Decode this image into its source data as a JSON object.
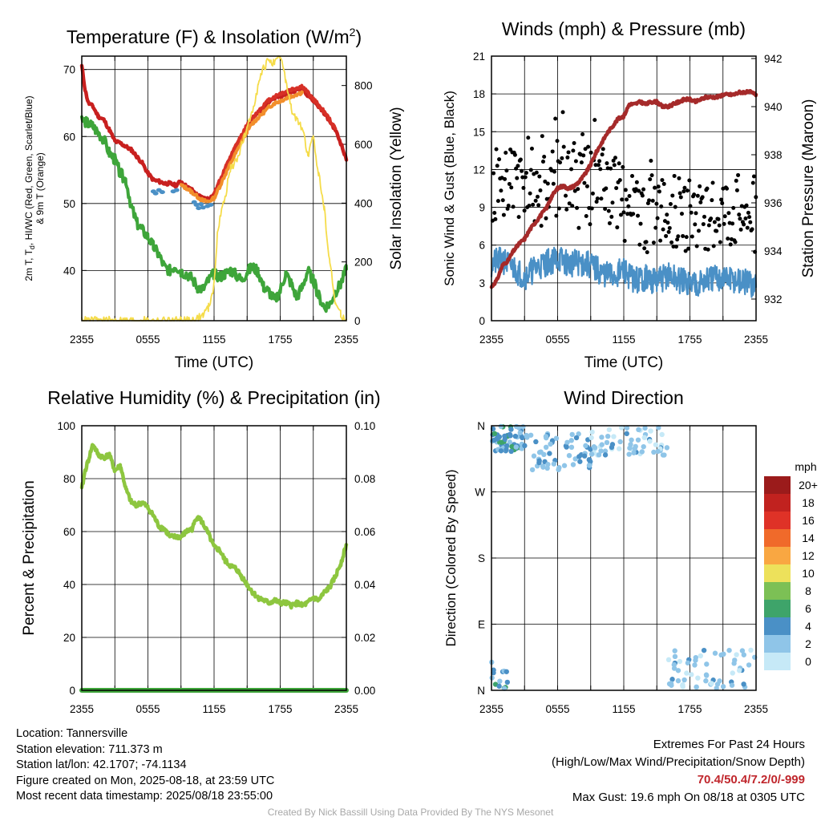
{
  "chart_data": [
    {
      "type": "line",
      "title": "Temperature (F) & Insolation (W/m²)",
      "xlabel": "Time (UTC)",
      "ylabel_left": "2m T, T_d, HI/WC (Red, Green, Scarlet/Blue) & 9m T (Orange)",
      "ylabel_right": "Solar Insolation (Yellow)",
      "xlim": [
        0,
        24
      ],
      "ylim_left": [
        32.5,
        72
      ],
      "ylim_right": [
        0,
        900
      ],
      "x_ticks": [
        "2355",
        "0555",
        "1155",
        "1755",
        "2355"
      ],
      "y_ticks_left": [
        40,
        50,
        60,
        70
      ],
      "y_ticks_right": [
        0,
        200,
        400,
        600,
        800
      ],
      "grid": true,
      "series": [
        {
          "name": "2m T",
          "color": "#c8201f",
          "axis": "left",
          "x": [
            0,
            0.3,
            0.6,
            1,
            1.5,
            2,
            2.5,
            3,
            3.5,
            4,
            4.5,
            5,
            5.5,
            6,
            6.5,
            7,
            7.5,
            8,
            8.5,
            9,
            9.5,
            10,
            10.5,
            11,
            11.5,
            12,
            12.5,
            13,
            13.5,
            14,
            14.5,
            15,
            15.5,
            16,
            16.5,
            17,
            17.5,
            18,
            18.5,
            19,
            19.5,
            20,
            20.5,
            21,
            21.5,
            22,
            22.5,
            23,
            23.5,
            24
          ],
          "y": [
            70.5,
            67,
            65,
            64.5,
            63,
            62.5,
            61,
            59.3,
            59,
            58.5,
            58,
            57,
            56,
            54.5,
            53.5,
            53.3,
            53,
            53,
            52.7,
            53.3,
            52.5,
            52,
            51.2,
            50.8,
            50.7,
            51.3,
            53.3,
            55,
            56.8,
            58.5,
            60,
            61.5,
            62.7,
            63.5,
            64.2,
            65.2,
            65.7,
            66,
            66.3,
            66.7,
            67,
            67.3,
            66.2,
            65.4,
            64.5,
            63.5,
            62.3,
            61,
            59,
            56.5
          ]
        },
        {
          "name": "HI/WC",
          "color": "#d73027",
          "axis": "left",
          "x": [
            12,
            13,
            14,
            15,
            16,
            17,
            18,
            19,
            20,
            21,
            22,
            23
          ],
          "y": [
            51.4,
            55.2,
            58.7,
            61.7,
            63.8,
            65.5,
            66.4,
            67,
            67.5,
            65.6,
            63.7,
            61.2
          ]
        },
        {
          "name": "9m T",
          "color": "#f28e2b",
          "axis": "left",
          "x": [
            9,
            9.5,
            10,
            10.5,
            11,
            11.5,
            12,
            12.5,
            13,
            13.5,
            14,
            14.5,
            15,
            15.5,
            16,
            16.5,
            17,
            17.5,
            18,
            18.5,
            19,
            19.5,
            20
          ],
          "y": [
            52.7,
            52.3,
            51.7,
            51,
            50.4,
            50.3,
            50.8,
            52.5,
            54.3,
            56,
            57.6,
            59.2,
            60.8,
            62,
            62.8,
            63.6,
            64.4,
            65,
            65.3,
            65.7,
            66,
            66.3,
            66.6
          ]
        },
        {
          "name": "T_d",
          "color": "#3ea53a",
          "axis": "left",
          "x": [
            0,
            0.5,
            1,
            1.5,
            2,
            2.5,
            3,
            3.5,
            4,
            4.5,
            5,
            5.5,
            6,
            6.5,
            7,
            7.5,
            8,
            8.5,
            9,
            9.5,
            10,
            10.5,
            11,
            11.5,
            12,
            12.5,
            13,
            13.5,
            14,
            14.5,
            15,
            15.5,
            16,
            16.5,
            17,
            17.5,
            18,
            18.5,
            19,
            19.5,
            20,
            20.5,
            21,
            21.5,
            22,
            22.5,
            23,
            23.5,
            24
          ],
          "y": [
            62.5,
            62,
            61.5,
            60.5,
            59.5,
            57.5,
            56.5,
            54.5,
            53.5,
            49.5,
            47,
            46,
            45,
            43.5,
            42.3,
            40.5,
            40,
            40.7,
            39.8,
            39.5,
            38.8,
            37.5,
            37.2,
            38.5,
            39.5,
            39,
            39.5,
            40,
            39.3,
            38.5,
            39.8,
            40.5,
            39.8,
            37.5,
            36.8,
            35.5,
            37,
            39.6,
            38,
            36,
            37.5,
            40,
            38.5,
            36.2,
            34.5,
            35,
            36.8,
            38,
            40.2
          ]
        },
        {
          "name": "T_d (WC)",
          "color": "#4a90c6",
          "axis": "left",
          "markers": true,
          "x": [
            6.5,
            6.7,
            7,
            7.3,
            8.3,
            8.6,
            10.2,
            10.4,
            10.6,
            10.8,
            11,
            11.4,
            11.7
          ],
          "y": [
            51.8,
            51.5,
            52,
            51.7,
            51.8,
            52,
            50.2,
            49.8,
            49.3,
            49.9,
            49.4,
            49.6,
            49.8
          ]
        },
        {
          "name": "Solar Insolation",
          "color": "#f5dc4a",
          "axis": "right",
          "x": [
            0,
            2,
            4,
            6,
            8,
            9,
            10,
            10.5,
            11,
            11.5,
            12,
            12.3,
            12.6,
            13,
            13.5,
            14,
            14.5,
            15,
            15.5,
            16,
            16.5,
            17,
            17.5,
            18,
            18.5,
            19,
            19.5,
            20,
            20.5,
            21,
            21.5,
            22,
            22.5,
            23,
            23.5,
            24
          ],
          "y": [
            0,
            0,
            0,
            0,
            0,
            0,
            2,
            8,
            20,
            45,
            120,
            300,
            360,
            420,
            520,
            540,
            600,
            650,
            720,
            800,
            860,
            890,
            870,
            900,
            820,
            720,
            680,
            660,
            560,
            620,
            500,
            380,
            200,
            60,
            20,
            5
          ]
        }
      ]
    },
    {
      "type": "line",
      "title": "Winds (mph) & Pressure (mb)",
      "xlabel": "Time (UTC)",
      "ylabel_left": "Sonic Wind & Gust (Blue, Black)",
      "ylabel_right": "Station Pressure (Maroon)",
      "xlim": [
        0,
        24
      ],
      "ylim_left": [
        0,
        21
      ],
      "ylim_right": [
        931.1,
        942.1
      ],
      "x_ticks": [
        "2355",
        "0555",
        "1155",
        "1755",
        "2355"
      ],
      "y_ticks_left": [
        0,
        3,
        6,
        9,
        12,
        15,
        18,
        21
      ],
      "y_ticks_right": [
        932,
        934,
        936,
        938,
        940,
        942
      ],
      "grid": true,
      "series": [
        {
          "name": "Pressure",
          "color": "#a52a2a",
          "axis": "right",
          "x": [
            0,
            0.5,
            1,
            1.5,
            2,
            2.5,
            3,
            3.5,
            4,
            4.5,
            5,
            5.5,
            6,
            6.5,
            7,
            7.5,
            8,
            8.5,
            9,
            9.5,
            10,
            10.5,
            11,
            11.5,
            12,
            12.5,
            13,
            13.5,
            14,
            14.5,
            15,
            15.5,
            16,
            16.5,
            17,
            17.5,
            18,
            18.5,
            19,
            19.5,
            20,
            20.5,
            21,
            21.5,
            22,
            22.5,
            23,
            23.5,
            24
          ],
          "y": [
            932.5,
            932.8,
            933.4,
            933.6,
            934,
            934.3,
            934.5,
            934.9,
            935.2,
            935.5,
            935.8,
            936.3,
            936.6,
            936.7,
            936.6,
            936.7,
            936.9,
            937.2,
            937.6,
            938.1,
            938.5,
            938.9,
            939.2,
            939.5,
            939.6,
            940.1,
            940.1,
            940.2,
            940.1,
            940.2,
            940.2,
            940.0,
            940.0,
            940.1,
            940.2,
            940.3,
            940.3,
            940.2,
            940.3,
            940.4,
            940.4,
            940.4,
            940.5,
            940.5,
            940.5,
            940.6,
            940.6,
            940.6,
            940.5
          ]
        },
        {
          "name": "Sonic Wind",
          "color": "#4a90c6",
          "axis": "left",
          "noisy": true,
          "x": [
            0,
            1,
            2,
            3,
            4,
            5,
            6,
            7,
            8,
            9,
            10,
            11,
            12,
            13,
            14,
            15,
            16,
            17,
            18,
            19,
            20,
            21,
            22,
            23,
            24
          ],
          "y": [
            4.5,
            4.8,
            4.2,
            3.5,
            4.2,
            4.6,
            5,
            4.5,
            4.6,
            4.4,
            3.8,
            3.5,
            4,
            3.2,
            3.4,
            3.1,
            3.6,
            3.2,
            3,
            3.1,
            3.3,
            3.4,
            3.2,
            3,
            2.7
          ]
        },
        {
          "name": "Gust",
          "color": "#000000",
          "axis": "left",
          "markers": true,
          "avg": 10.2,
          "spread": 2.8
        }
      ]
    },
    {
      "type": "line",
      "title": "Relative Humidity (%) & Precipitation (in)",
      "ylabel_left": "Percent & Precipitation",
      "xlim": [
        0,
        24
      ],
      "ylim_left": [
        0,
        100
      ],
      "ylim_right": [
        0,
        0.1
      ],
      "x_ticks": [
        "2355",
        "0555",
        "1155",
        "1755",
        "2355"
      ],
      "y_ticks_left": [
        0,
        20,
        40,
        60,
        80,
        100
      ],
      "y_ticks_right": [
        "0.00",
        "0.02",
        "0.04",
        "0.06",
        "0.08",
        "0.10"
      ],
      "grid": true,
      "series": [
        {
          "name": "RH",
          "color": "#8dc63f",
          "axis": "left",
          "x": [
            0,
            0.3,
            0.6,
            1,
            1.5,
            2,
            2.5,
            3,
            3.5,
            4,
            4.5,
            5,
            5.5,
            6,
            6.5,
            7,
            7.5,
            8,
            8.5,
            9,
            9.5,
            10,
            10.5,
            11,
            11.5,
            12,
            12.5,
            13,
            13.5,
            14,
            14.5,
            15,
            15.5,
            16,
            16.5,
            17,
            17.5,
            18,
            18.5,
            19,
            19.5,
            20,
            20.5,
            21,
            21.5,
            22,
            22.5,
            23,
            23.5,
            24
          ],
          "y": [
            76,
            83,
            87,
            93,
            89,
            88,
            89,
            83,
            85,
            76,
            71,
            70,
            71,
            69,
            66,
            62,
            61,
            58,
            58,
            58,
            60,
            61,
            66,
            63,
            59,
            54,
            53,
            49,
            47,
            46,
            43,
            40,
            37,
            35,
            34,
            33,
            34,
            33,
            33,
            32,
            33,
            32,
            33,
            35,
            34,
            37,
            39,
            43,
            48,
            55
          ]
        },
        {
          "name": "Precipitation",
          "color": "#3ea53a",
          "axis": "right",
          "x": [
            0,
            24
          ],
          "y": [
            0,
            0
          ]
        }
      ]
    },
    {
      "type": "scatter",
      "title": "Wind Direction",
      "ylabel_left": "Direction (Colored By Speed)",
      "xlim": [
        0,
        24
      ],
      "ylim_left": [
        0,
        360
      ],
      "x_ticks": [
        "2355",
        "0555",
        "1155",
        "1755",
        "2355"
      ],
      "y_tick_labels": [
        "N",
        "E",
        "S",
        "W",
        "N"
      ],
      "grid": true,
      "colorbar": {
        "title": "mph",
        "labels": [
          "0",
          "2",
          "4",
          "6",
          "8",
          "10",
          "12",
          "14",
          "16",
          "18",
          "20+"
        ],
        "colors": [
          "#c6e9f7",
          "#8fc5e8",
          "#4a90c6",
          "#3ea46a",
          "#7cc055",
          "#ede15b",
          "#f9a742",
          "#f06a2a",
          "#df3227",
          "#c1221f",
          "#9b1b1b"
        ]
      },
      "clusters": [
        {
          "x_range": [
            0,
            3
          ],
          "deg_range": [
            325,
            360
          ],
          "speed_range": [
            2,
            7
          ]
        },
        {
          "x_range": [
            3,
            9
          ],
          "deg_range": [
            300,
            350
          ],
          "speed_range": [
            2,
            5
          ]
        },
        {
          "x_range": [
            9,
            16
          ],
          "deg_range": [
            320,
            358
          ],
          "speed_range": [
            1,
            4.5
          ]
        },
        {
          "x_range": [
            16,
            24
          ],
          "deg_range": [
            0,
            55
          ],
          "speed_range": [
            1,
            4.5
          ]
        },
        {
          "x_range": [
            0,
            1.5
          ],
          "deg_range": [
            2,
            40
          ],
          "speed_range": [
            2,
            7
          ]
        }
      ]
    }
  ],
  "info": {
    "location": "Location: Tannersville",
    "elevation": "Station elevation: 711.373 m",
    "latlon": "Station lat/lon: 42.1707; -74.1134",
    "created": "Figure created on Mon, 2025-08-18, at 23:59 UTC",
    "recent": "Most recent data timestamp: 2025/08/18 23:55:00"
  },
  "extremes": {
    "title": "Extremes For Past 24 Hours",
    "subtitle": "(High/Low/Max Wind/Precipitation/Snow Depth)",
    "values": "70.4/50.4/7.2/0/-999",
    "gust": "Max Gust: 19.6 mph On 08/18 at 0305 UTC"
  },
  "credit": "Created By Nick Bassill Using Data Provided By The NYS Mesonet"
}
